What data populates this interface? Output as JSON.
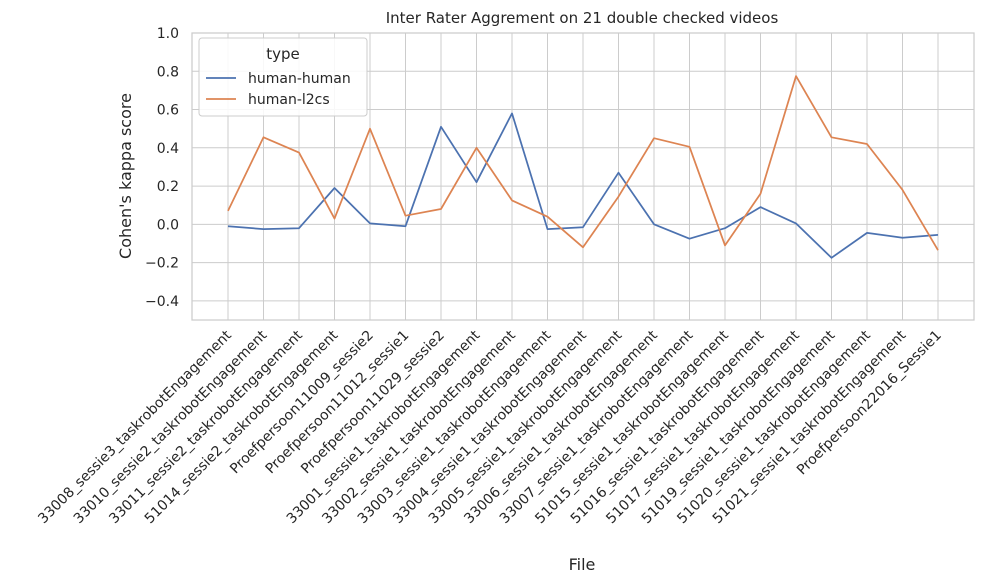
{
  "chart_data": {
    "type": "line",
    "title": "Inter Rater Aggrement on 21 double checked videos",
    "xlabel": "File",
    "ylabel": "Cohen's kappa score",
    "ylim": [
      -0.5,
      1.0
    ],
    "yticks": [
      "−0.4",
      "−0.2",
      "0.0",
      "0.2",
      "0.4",
      "0.6",
      "0.8",
      "1.0"
    ],
    "ytick_values": [
      -0.4,
      -0.2,
      0.0,
      0.2,
      0.4,
      0.6,
      0.8,
      1.0
    ],
    "grid": true,
    "legend": {
      "title": "type",
      "placement": "top-left"
    },
    "categories": [
      "33008_sessie3_taskrobotEngagement",
      "33010_sessie2_taskrobotEngagement",
      "33011_sessie2_taskrobotEngagement",
      "51014_sessie2_taskrobotEngagement",
      "Proefpersoon11009_sessie2",
      "Proefpersoon11012_sessie1",
      "Proefpersoon11029_sessie2",
      "33001_sessie1_taskrobotEngagement",
      "33002_sessie1_taskrobotEngagement",
      "33003_sessie1_taskrobotEngagement",
      "33004_sessie1_taskrobotEngagement",
      "33005_sessie1_taskrobotEngagement",
      "33006_sessie1_taskrobotEngagement",
      "33007_sessie1_taskrobotEngagement",
      "51015_sessie1_taskrobotEngagement",
      "51016_sessie1_taskrobotEngagement",
      "51017_sessie1_taskrobotEngagement",
      "51019_sessie1_taskrobotEngagement",
      "51020_sessie1_taskrobotEngagement",
      "51021_sessie1_taskrobotEngagement",
      "Proefpersoon22016_Sessie1"
    ],
    "series": [
      {
        "name": "human-human",
        "color": "#4c72b0",
        "values": [
          -0.01,
          -0.025,
          -0.02,
          0.19,
          0.005,
          -0.01,
          0.51,
          0.22,
          0.58,
          -0.025,
          -0.015,
          0.27,
          0.0,
          -0.075,
          -0.02,
          0.09,
          0.005,
          -0.175,
          -0.045,
          -0.07,
          -0.055
        ]
      },
      {
        "name": "human-l2cs",
        "color": "#dd8452",
        "values": [
          0.07,
          0.455,
          0.375,
          0.03,
          0.5,
          0.045,
          0.08,
          0.4,
          0.125,
          0.04,
          -0.12,
          0.145,
          0.45,
          0.405,
          -0.11,
          0.16,
          0.775,
          0.455,
          0.42,
          0.18,
          -0.135
        ]
      }
    ]
  }
}
